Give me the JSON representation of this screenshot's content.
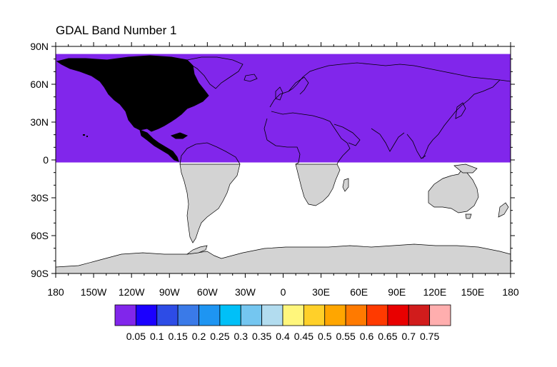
{
  "title": "GDAL Band Number 1",
  "map": {
    "lat_labels": [
      "90N",
      "60N",
      "30N",
      "0",
      "30S",
      "60S",
      "90S"
    ],
    "lat_values": [
      90,
      60,
      30,
      0,
      -30,
      -60,
      -90
    ],
    "lon_labels": [
      "180",
      "150W",
      "120W",
      "90W",
      "60W",
      "30W",
      "0",
      "30E",
      "60E",
      "90E",
      "120E",
      "150E",
      "180"
    ],
    "lon_values": [
      -180,
      -150,
      -120,
      -90,
      -60,
      -30,
      0,
      30,
      60,
      90,
      120,
      150,
      180
    ],
    "data_extent": {
      "lat_north": 84,
      "lat_south": -2
    },
    "fill_color": "#8126eb",
    "land_color": "#d3d3d3",
    "coastline_color": "#000000"
  },
  "colorbar": {
    "labels": [
      "0.05",
      "0.1",
      "0.15",
      "0.2",
      "0.25",
      "0.3",
      "0.35",
      "0.4",
      "0.45",
      "0.5",
      "0.55",
      "0.6",
      "0.65",
      "0.7",
      "0.75"
    ],
    "colors": [
      "#8126eb",
      "#1b00ff",
      "#2d4ce6",
      "#3a7ae8",
      "#1e95f2",
      "#00c0f8",
      "#74c6f0",
      "#b2dcef",
      "#fff67c",
      "#ffd029",
      "#ffa600",
      "#ff7a00",
      "#ff3a00",
      "#e80000",
      "#d11c1c",
      "#ffaeae"
    ]
  }
}
